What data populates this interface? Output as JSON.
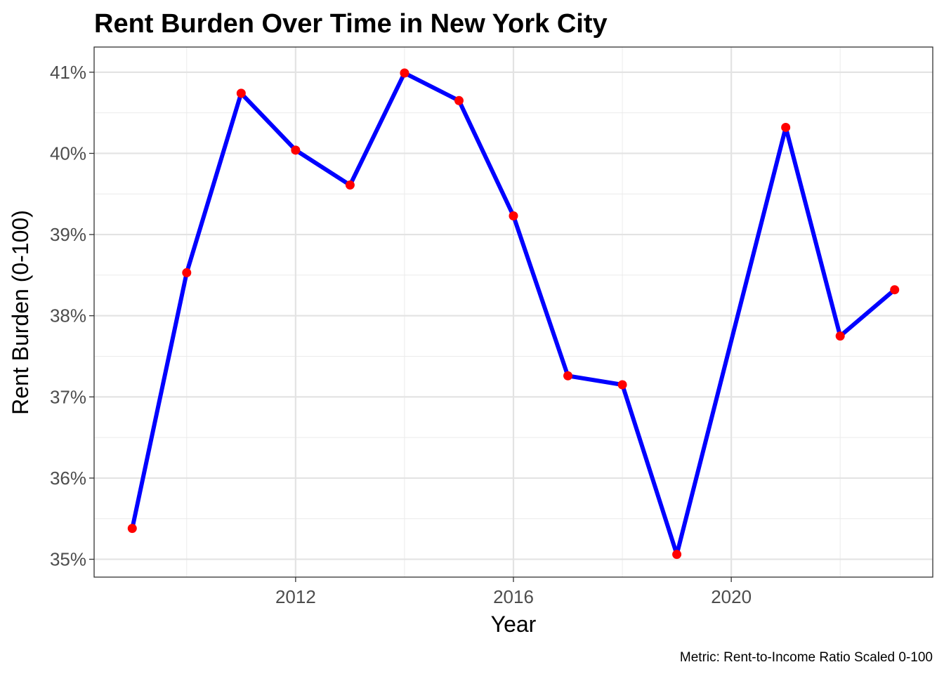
{
  "chart_data": {
    "type": "line",
    "title": "Rent Burden Over Time in New York City",
    "xlabel": "Year",
    "ylabel": "Rent Burden (0-100)",
    "caption": "Metric: Rent-to-Income Ratio Scaled 0-100",
    "x_ticks": [
      2012,
      2016,
      2020
    ],
    "x_tick_labels": [
      "2012",
      "2016",
      "2020"
    ],
    "y_ticks": [
      35,
      36,
      37,
      38,
      39,
      40,
      41
    ],
    "y_tick_labels": [
      "35%",
      "36%",
      "37%",
      "38%",
      "39%",
      "40%",
      "41%"
    ],
    "xlim": [
      2008.3,
      2023.7
    ],
    "ylim": [
      34.78,
      41.31
    ],
    "grid": true,
    "line_color": "#0000ff",
    "point_color": "#ff0000",
    "series": [
      {
        "x": [
          2009,
          2010,
          2011,
          2012,
          2013,
          2014,
          2015,
          2016,
          2017,
          2018,
          2019,
          2020,
          2021,
          2022,
          2023
        ],
        "values": [
          35.38,
          38.53,
          40.74,
          40.04,
          39.61,
          40.99,
          40.65,
          39.23,
          37.26,
          37.15,
          35.06,
          null,
          40.32,
          37.75,
          38.32
        ]
      }
    ],
    "line_points": {
      "x": [
        2009,
        2010,
        2011,
        2012,
        2013,
        2014,
        2015,
        2016,
        2017,
        2018,
        2019,
        2020,
        2021,
        2022,
        2023
      ],
      "values": [
        35.38,
        38.53,
        40.74,
        40.04,
        39.61,
        40.99,
        40.65,
        39.23,
        37.26,
        37.15,
        35.06,
        37.69,
        40.32,
        37.75,
        38.32
      ]
    }
  }
}
